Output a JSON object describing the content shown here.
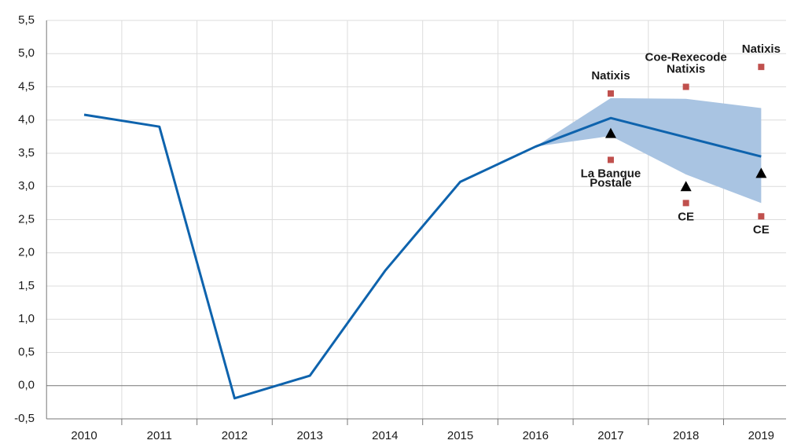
{
  "chart_data": {
    "type": "line",
    "categories": [
      "2010",
      "2011",
      "2012",
      "2013",
      "2014",
      "2015",
      "2016",
      "2017",
      "2018",
      "2019"
    ],
    "series": [
      {
        "color": "#0e63ad",
        "values": [
          4.08,
          3.9,
          -0.19,
          0.15,
          1.73,
          3.07,
          3.6,
          4.03,
          3.74,
          3.45
        ]
      }
    ],
    "band": {
      "color": "#a9c4e2",
      "upper": [
        null,
        null,
        null,
        null,
        null,
        null,
        3.6,
        4.33,
        4.32,
        4.18
      ],
      "lower": [
        null,
        null,
        null,
        null,
        null,
        null,
        3.6,
        3.76,
        3.18,
        2.75
      ]
    },
    "triangles": {
      "color": "#000000",
      "values": [
        null,
        null,
        null,
        null,
        null,
        null,
        null,
        3.8,
        3.0,
        3.2
      ]
    },
    "forecasts": {
      "color": "#c0504d",
      "points": [
        {
          "index": 7,
          "value": 4.4,
          "label": [
            "Natixis"
          ]
        },
        {
          "index": 7,
          "value": 3.4,
          "label": [
            "La Banque",
            "Postale"
          ]
        },
        {
          "index": 8,
          "value": 4.5,
          "label": [
            "Coe-Rexecode",
            "Natixis"
          ]
        },
        {
          "index": 8,
          "value": 2.75,
          "label": [
            "CE"
          ]
        },
        {
          "index": 9,
          "value": 4.8,
          "label": [
            "Natixis"
          ]
        },
        {
          "index": 9,
          "value": 2.55,
          "label": [
            "CE"
          ]
        }
      ]
    },
    "ylim": [
      -0.5,
      5.5
    ],
    "yticks": [
      {
        "value": -0.5,
        "label": "-0,5"
      },
      {
        "value": 0,
        "label": "0,0"
      },
      {
        "value": 0.5,
        "label": "0,5"
      },
      {
        "value": 1,
        "label": "1,0"
      },
      {
        "value": 1.5,
        "label": "1,5"
      },
      {
        "value": 2,
        "label": "2,0"
      },
      {
        "value": 2.5,
        "label": "2,5"
      },
      {
        "value": 3,
        "label": "3,0"
      },
      {
        "value": 3.5,
        "label": "3,5"
      },
      {
        "value": 4,
        "label": "4,0"
      },
      {
        "value": 4.5,
        "label": "4,5"
      },
      {
        "value": 5,
        "label": "5,0"
      },
      {
        "value": 5.5,
        "label": "5,5"
      }
    ],
    "grid": true
  }
}
